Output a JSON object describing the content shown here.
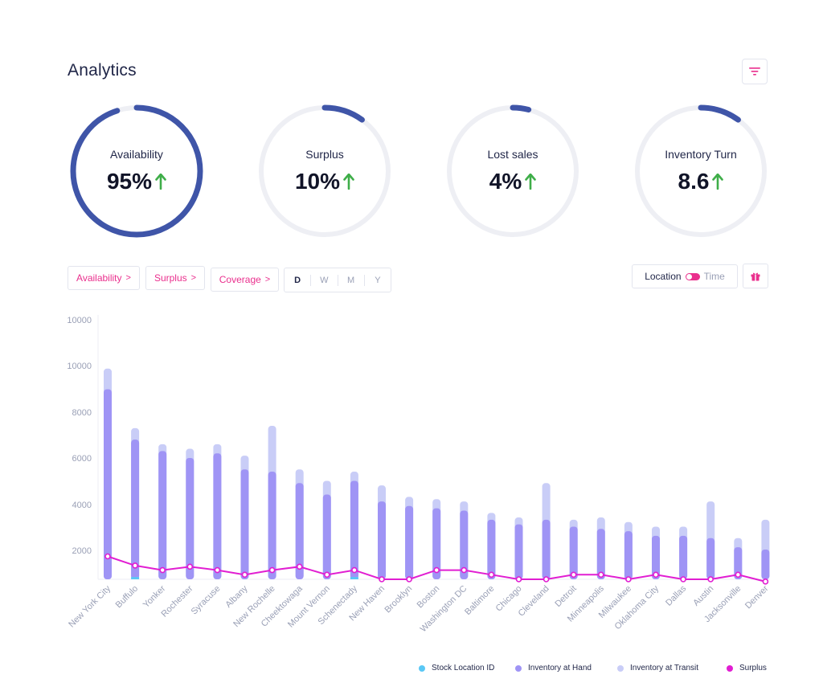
{
  "header": {
    "title": "Analytics",
    "filter_icon": "filter-icon"
  },
  "kpis": [
    {
      "label": "Availability",
      "value": "95%",
      "fraction": 0.95,
      "trend_icon": "arrow-up-icon",
      "color": "#3f55a8"
    },
    {
      "label": "Surplus",
      "value": "10%",
      "fraction": 0.1,
      "trend_icon": "arrow-up-icon",
      "color": "#3f55a8"
    },
    {
      "label": "Lost sales",
      "value": "4%",
      "fraction": 0.04,
      "trend_icon": "arrow-up-icon",
      "color": "#3f55a8"
    },
    {
      "label": "Inventory Turn",
      "value": "8.6",
      "fraction": 0.1,
      "trend_icon": "arrow-up-icon",
      "color": "#3f55a8"
    }
  ],
  "filters": {
    "chips": [
      "Availability",
      "Surplus",
      "Coverage"
    ],
    "chevron": ">",
    "periods": [
      "D",
      "W",
      "M",
      "Y"
    ],
    "active_period": "D",
    "toggle": {
      "left": "Location",
      "right": "Time"
    },
    "gift_icon": "gift-icon"
  },
  "colors": {
    "accent": "#ea2f8d",
    "ring_track": "#eeeff4",
    "arrow_up": "#3fae49",
    "stock": "#5ac8f5",
    "hand": "#9f94f5",
    "transit": "#c9cdf7",
    "surplus": "#e11ed2"
  },
  "chart_data": {
    "type": "bar",
    "categories": [
      "New York City",
      "Buffulo",
      "Yonker",
      "Rochester",
      "Syracuse",
      "Albany",
      "New Rochelle",
      "Cheektowaga",
      "Mount Vernon",
      "Schenectady",
      "New Haven",
      "Brooklyn",
      "Boston",
      "Washington DC",
      "Baltimore",
      "Chicago",
      "Cleveland",
      "Detroit",
      "Minneapolis",
      "Milwaukee",
      "Oklahoma City",
      "Dallas",
      "Austin",
      "Jacksonville",
      "Denver"
    ],
    "y_ticks": [
      "2000",
      "4000",
      "6000",
      "8000",
      "10000",
      "10000"
    ],
    "grid": false,
    "legend_position": "bottom-right",
    "series": [
      {
        "name": "Stock Location ID",
        "kind": "bar",
        "values": [
          700,
          1100,
          900,
          900,
          900,
          800,
          900,
          800,
          800,
          1100,
          800,
          800,
          900,
          800,
          800,
          800,
          900,
          800,
          800,
          800,
          800,
          700,
          800,
          900,
          600
        ]
      },
      {
        "name": "Inventory at Hand",
        "kind": "bar",
        "values": [
          9300,
          7100,
          6600,
          6300,
          6500,
          5800,
          5700,
          5200,
          4700,
          5300,
          4400,
          4200,
          4100,
          4000,
          3600,
          3400,
          3600,
          3300,
          3200,
          3100,
          2900,
          2900,
          2800,
          2400,
          2300
        ]
      },
      {
        "name": "Inventory at Transit",
        "kind": "bar",
        "values": [
          10200,
          7600,
          6900,
          6700,
          6900,
          6400,
          7700,
          5800,
          5300,
          5700,
          5100,
          4600,
          4500,
          4400,
          3900,
          3700,
          5200,
          3600,
          3700,
          3500,
          3300,
          3300,
          4400,
          2800,
          3600
        ]
      },
      {
        "name": "Surplus",
        "kind": "line",
        "values": [
          2000,
          1600,
          1400,
          1550,
          1400,
          1200,
          1400,
          1550,
          1200,
          1400,
          1000,
          1000,
          1400,
          1400,
          1200,
          1000,
          1000,
          1200,
          1200,
          1000,
          1200,
          1000,
          1000,
          1200,
          900
        ]
      }
    ]
  }
}
